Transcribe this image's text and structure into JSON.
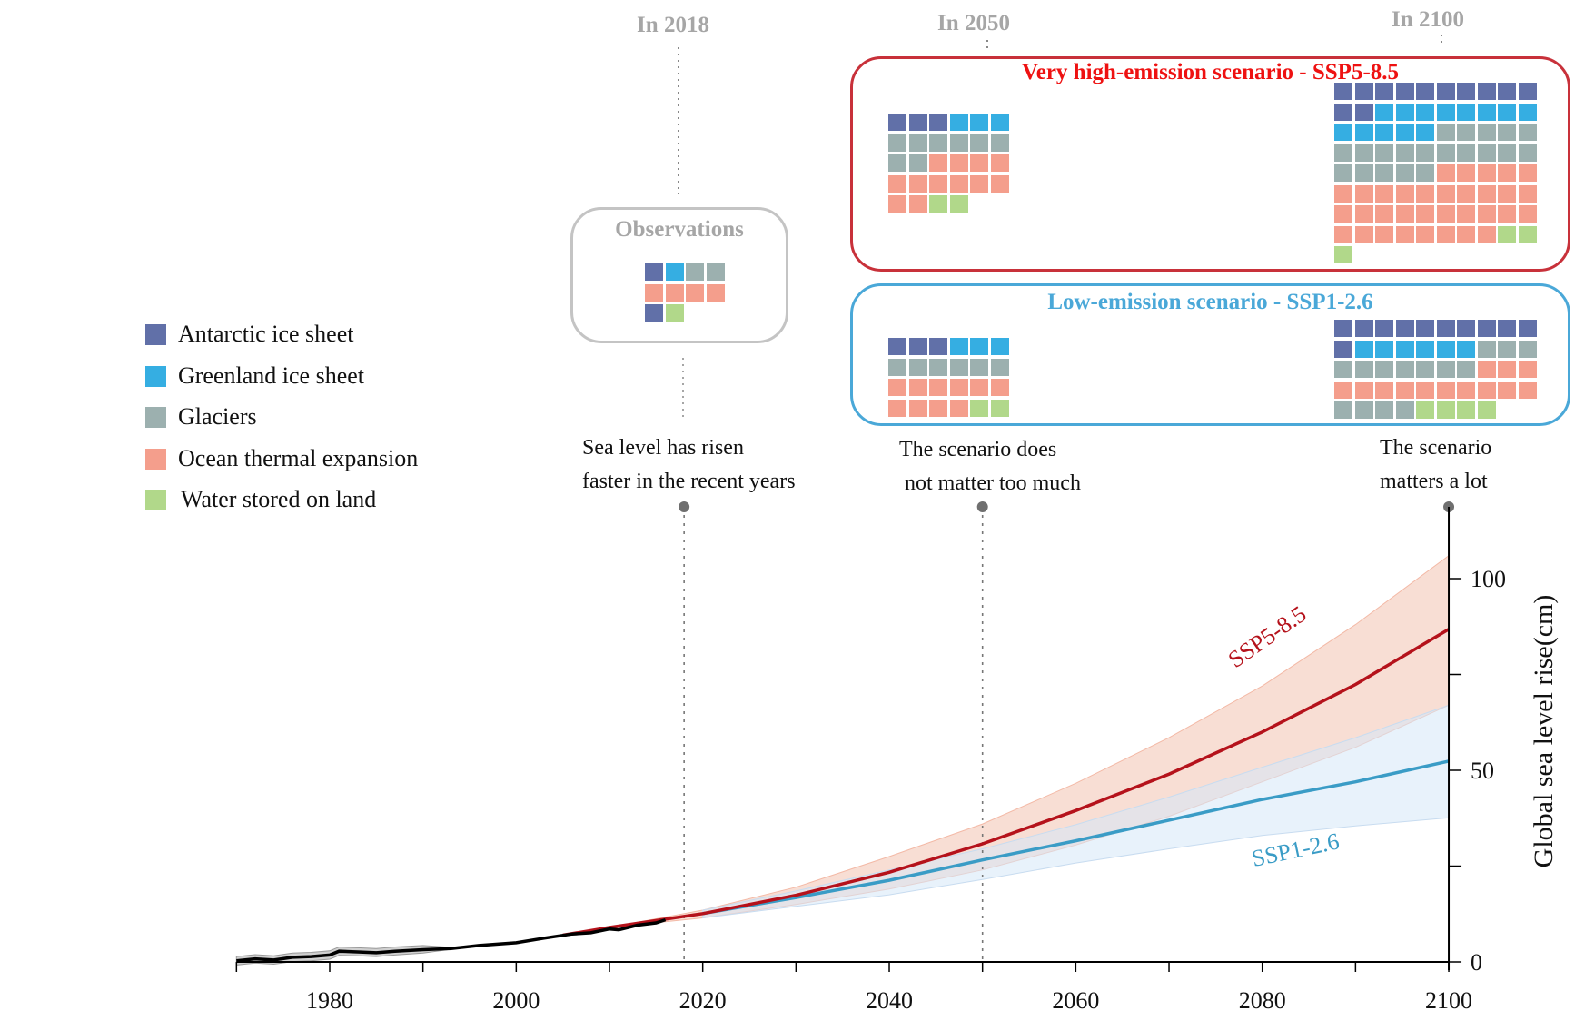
{
  "era_labels": {
    "y2018": "In 2018",
    "y2050": "In 2050",
    "y2100": "In 2100"
  },
  "legend": [
    {
      "key": "antarctic",
      "label": "Antarctic ice sheet",
      "color": "#6170a8"
    },
    {
      "key": "greenland",
      "label": "Greenland ice sheet",
      "color": "#35aee2"
    },
    {
      "key": "glaciers",
      "label": "Glaciers",
      "color": "#9cb0af"
    },
    {
      "key": "ocean",
      "label": "Ocean thermal expansion",
      "color": "#f49e8c"
    },
    {
      "key": "land",
      "label": "Water stored on land",
      "color": "#b1d88a"
    }
  ],
  "observations": {
    "title": "Observations",
    "waffle": {
      "columns": 4,
      "runs": [
        [
          "antarctic",
          1
        ],
        [
          "greenland",
          1
        ],
        [
          "glaciers",
          2
        ],
        [
          "ocean",
          4
        ],
        [
          "antarctic",
          1
        ],
        [
          "land",
          1
        ]
      ]
    }
  },
  "ssp585_box": {
    "title": "Very high-emission scenario - SSP5-8.5",
    "title_color": "#ee1111",
    "border_color": "#c8313a",
    "waffle_2050": {
      "columns": 6,
      "runs": [
        [
          "antarctic",
          3
        ],
        [
          "greenland",
          3
        ],
        [
          "glaciers",
          8
        ],
        [
          "ocean",
          12
        ],
        [
          "land",
          2
        ]
      ]
    },
    "waffle_2100": {
      "columns": 10,
      "runs": [
        [
          "antarctic",
          12
        ],
        [
          "greenland",
          13
        ],
        [
          "glaciers",
          20
        ],
        [
          "ocean",
          33
        ],
        [
          "land",
          3
        ]
      ]
    }
  },
  "ssp126_box": {
    "title": "Low-emission scenario - SSP1-2.6",
    "title_color": "#4aa8d8",
    "border_color": "#4aa8d8",
    "waffle_2050": {
      "columns": 6,
      "runs": [
        [
          "antarctic",
          3
        ],
        [
          "greenland",
          3
        ],
        [
          "glaciers",
          6
        ],
        [
          "ocean",
          10
        ],
        [
          "land",
          2
        ]
      ]
    },
    "waffle_2100": {
      "columns": 10,
      "runs": [
        [
          "antarctic",
          11
        ],
        [
          "greenland",
          6
        ],
        [
          "glaciers",
          10
        ],
        [
          "ocean",
          13
        ],
        [
          "glaciers",
          4
        ],
        [
          "land",
          4
        ]
      ]
    }
  },
  "notes": {
    "n2018": [
      "Sea level has risen",
      "faster in the recent years"
    ],
    "n2050": [
      "The scenario does",
      " not matter too much"
    ],
    "n2100": [
      "The scenario",
      "matters a lot"
    ]
  },
  "chart_data": {
    "type": "line",
    "title": "",
    "xlabel": "",
    "ylabel": "Global sea level rise(cm)",
    "xlim": [
      1970,
      2100
    ],
    "ylim": [
      0,
      100
    ],
    "x_ticks": [
      1980,
      2000,
      2020,
      2040,
      2060,
      2080,
      2100
    ],
    "y_ticks": [
      0,
      50,
      100
    ],
    "grid": false,
    "markers": [
      2018,
      2050,
      2100
    ],
    "series": [
      {
        "name": "",
        "role": "observed",
        "color": "#000000",
        "x": [
          1970,
          1972,
          1974,
          1976,
          1978,
          1980,
          1981,
          1983,
          1985,
          1987,
          1990,
          1993,
          1996,
          2000,
          2003,
          2006,
          2008,
          2010,
          2011,
          2013,
          2015,
          2016
        ],
        "y": [
          0.3,
          0.8,
          0.5,
          1.2,
          1.4,
          1.8,
          2.8,
          2.6,
          2.4,
          2.8,
          3.2,
          3.5,
          4.3,
          5.0,
          6.2,
          7.3,
          7.6,
          8.6,
          8.4,
          9.6,
          10.2,
          11.0
        ],
        "band_low": [
          -0.8,
          -0.3,
          -0.6,
          0.1,
          0.3,
          0.7,
          1.7,
          1.6,
          1.4,
          1.8,
          2.3,
          3.3
        ],
        "band_high": [
          1.4,
          1.9,
          1.6,
          2.3,
          2.5,
          2.9,
          3.9,
          3.7,
          3.5,
          3.9,
          4.3,
          3.8
        ]
      },
      {
        "name": "SSP5-8.5",
        "color": "#b5121b",
        "band_color": "#f4c8b8",
        "x": [
          2005,
          2010,
          2020,
          2030,
          2040,
          2050,
          2060,
          2070,
          2080,
          2090,
          2100
        ],
        "y": [
          7,
          9,
          12.6,
          17.4,
          23.4,
          30.8,
          39.5,
          49,
          60,
          72.4,
          86.8
        ],
        "band_low": [
          7,
          9,
          11.5,
          15,
          19,
          24,
          30.5,
          38,
          47,
          56,
          67
        ],
        "band_high": [
          7,
          9,
          13.5,
          19.5,
          27.5,
          36,
          46.6,
          58.5,
          72,
          88,
          106
        ]
      },
      {
        "name": "SSP1-2.6",
        "color": "#3a9cc6",
        "band_color": "#d6e8f8",
        "x": [
          2020,
          2030,
          2040,
          2050,
          2060,
          2070,
          2080,
          2090,
          2100
        ],
        "y": [
          12.6,
          16.8,
          21.3,
          26.6,
          31.6,
          37,
          42.4,
          47,
          52.4
        ],
        "band_low": [
          11.5,
          14.5,
          17.5,
          21.5,
          25.8,
          29.5,
          33,
          35.5,
          37.6
        ],
        "band_high": [
          13.5,
          18.5,
          24,
          29.5,
          35.8,
          43,
          50.8,
          58.5,
          67
        ]
      }
    ]
  }
}
